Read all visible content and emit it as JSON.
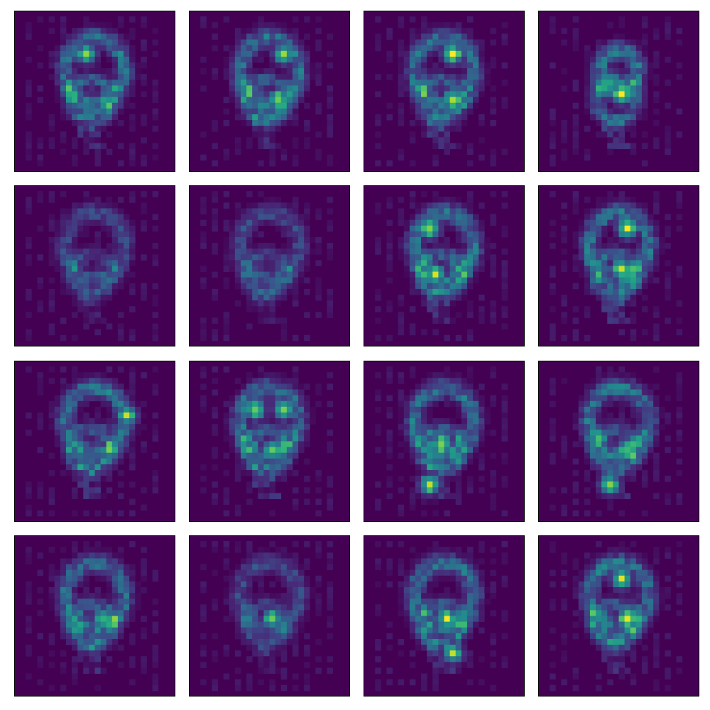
{
  "chart_data": {
    "type": "heatmap",
    "title": "",
    "xlabel": "",
    "ylabel": "",
    "colormap": "viridis",
    "value_range": [
      0,
      1
    ],
    "grid": false,
    "axis_ticks": false,
    "layout_grid": {
      "rows": 4,
      "cols": 4
    },
    "image_resolution": [
      28,
      28
    ],
    "background_color": "#440154",
    "panels": [
      {
        "index": 0,
        "shape": "ring-open-left",
        "blobs": [
          {
            "r": 7,
            "c": 12,
            "v": 0.85
          }
        ]
      },
      {
        "index": 1,
        "shape": "ring-curl",
        "blobs": [
          {
            "r": 7,
            "c": 16,
            "v": 0.9
          },
          {
            "r": 15,
            "c": 15,
            "v": 0.95
          }
        ]
      },
      {
        "index": 2,
        "shape": "hook-two",
        "blobs": [
          {
            "r": 7,
            "c": 15,
            "v": 1.0
          },
          {
            "r": 15,
            "c": 15,
            "v": 1.0
          }
        ]
      },
      {
        "index": 3,
        "shape": "small-knot",
        "blobs": [
          {
            "r": 14,
            "c": 14,
            "v": 1.0
          }
        ]
      },
      {
        "index": 4,
        "shape": "dim-ring",
        "blobs": []
      },
      {
        "index": 5,
        "shape": "dim-ring-top",
        "blobs": []
      },
      {
        "index": 6,
        "shape": "ring-slant",
        "blobs": [
          {
            "r": 7,
            "c": 11,
            "v": 0.95
          },
          {
            "r": 15,
            "c": 12,
            "v": 0.95
          }
        ]
      },
      {
        "index": 7,
        "shape": "stacked-bars",
        "blobs": [
          {
            "r": 7,
            "c": 15,
            "v": 1.0
          },
          {
            "r": 14,
            "c": 14,
            "v": 1.0
          }
        ]
      },
      {
        "index": 8,
        "shape": "split-ring",
        "blobs": [
          {
            "r": 9,
            "c": 19,
            "v": 0.9
          }
        ]
      },
      {
        "index": 9,
        "shape": "full-ring",
        "blobs": [
          {
            "r": 8,
            "c": 11,
            "v": 0.95
          },
          {
            "r": 8,
            "c": 16,
            "v": 0.95
          },
          {
            "r": 15,
            "c": 14,
            "v": 0.95
          }
        ]
      },
      {
        "index": 10,
        "shape": "bright-band",
        "blobs": [
          {
            "r": 14,
            "c": 13,
            "v": 1.0
          },
          {
            "r": 21,
            "c": 11,
            "v": 0.95
          }
        ]
      },
      {
        "index": 11,
        "shape": "lower-knot",
        "blobs": [
          {
            "r": 15,
            "c": 15,
            "v": 0.9
          },
          {
            "r": 21,
            "c": 12,
            "v": 0.85
          }
        ]
      },
      {
        "index": 12,
        "shape": "ring-tail",
        "blobs": [
          {
            "r": 14,
            "c": 15,
            "v": 0.8
          }
        ]
      },
      {
        "index": 13,
        "shape": "dim-ring-low",
        "blobs": [
          {
            "r": 14,
            "c": 14,
            "v": 0.85
          }
        ]
      },
      {
        "index": 14,
        "shape": "column-knots",
        "blobs": [
          {
            "r": 14,
            "c": 14,
            "v": 0.95
          },
          {
            "r": 20,
            "c": 15,
            "v": 0.85
          }
        ]
      },
      {
        "index": 15,
        "shape": "ring-knot",
        "blobs": [
          {
            "r": 7,
            "c": 14,
            "v": 0.95
          },
          {
            "r": 14,
            "c": 15,
            "v": 1.0
          }
        ]
      }
    ]
  }
}
